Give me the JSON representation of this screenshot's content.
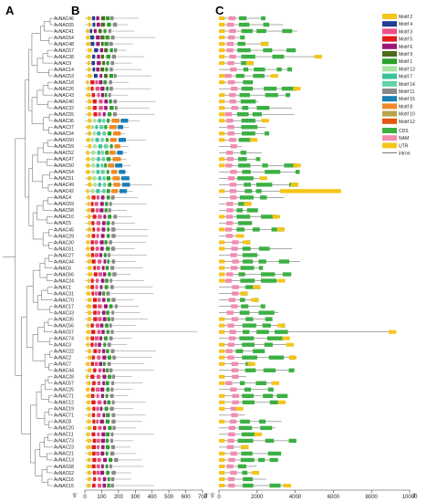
{
  "panels": {
    "a": "A",
    "b": "B",
    "c": "C"
  },
  "genes": [
    "AvNAC46",
    "AvNAC65",
    "AvNAC41",
    "AvNAC64",
    "AvNAC48",
    "AvNAC67",
    "AvNAC38",
    "AvNAC9",
    "AvNAC14",
    "AvNAC53",
    "AvNAC18",
    "AvNAC26",
    "AvNAC43",
    "AvNAC40",
    "AvNAC32",
    "AvNAC55",
    "AvNAC36",
    "AvNAC37",
    "AvNAC34",
    "AvNAC60",
    "AvNAC59",
    "AvNAC52",
    "AvNAC47",
    "AvNAC50",
    "AvNAC54",
    "AvNAC51",
    "AvNAC49",
    "AvNAC42",
    "AvNAC4",
    "AvNAC69",
    "AvNAC58",
    "AvNAC10",
    "AvNAC5",
    "AvNAC45",
    "AvNAC29",
    "AvNAC30",
    "AvNAC61",
    "AvNAC27",
    "AvNAC44",
    "AvNAC6",
    "AvNAC66",
    "AvNAC24",
    "AvNAC1",
    "AvNAC31",
    "AvNAC70",
    "AvNAC17",
    "AvNAC33",
    "AvNAC35",
    "AvNAC56",
    "AvNAC57",
    "AvNAC74",
    "AvNAC3",
    "AvNAC22",
    "AvNAC2",
    "AvNAC7",
    "AvNAC44",
    "AvNAC28",
    "AvNAC57",
    "AvNAC25",
    "AvNAC71",
    "AvNAC12",
    "AvNAC19",
    "AvNAC71",
    "AvNAC8",
    "AvNAC20",
    "AvNAC11",
    "AvNAC73",
    "AvNAC23",
    "AvNAC21",
    "AvNAC13",
    "AvNAC68",
    "AvNAC62",
    "AvNAC16",
    "AvNAC15"
  ],
  "motif_axis": {
    "ticks": [
      "0",
      "100",
      "200",
      "300",
      "400",
      "500",
      "600",
      "700"
    ],
    "five_prime": "5'",
    "three_prime": "3'"
  },
  "gene_axis": {
    "ticks": [
      "0",
      "2000",
      "4000",
      "6000",
      "8000",
      "10000"
    ],
    "five_prime": "5'",
    "three_prime": "3'"
  },
  "motif_legend": [
    {
      "label": "Motif 2",
      "color": "#f5c518"
    },
    {
      "label": "Motif 4",
      "color": "#1f3f8f"
    },
    {
      "label": "Motif 3",
      "color": "#e8508a"
    },
    {
      "label": "Motif 5",
      "color": "#e31a1c"
    },
    {
      "label": "Motif 6",
      "color": "#a0157a"
    },
    {
      "label": "Motif 9",
      "color": "#4d6b1a"
    },
    {
      "label": "Motif 1",
      "color": "#2ca02c"
    },
    {
      "label": "Motif 13",
      "color": "#a6e3a1"
    },
    {
      "label": "Motif 7",
      "color": "#3bc29a"
    },
    {
      "label": "Motif 14",
      "color": "#5fd3a3"
    },
    {
      "label": "Motif 11",
      "color": "#8a8a8a"
    },
    {
      "label": "Motif 15",
      "color": "#1a7fb5"
    },
    {
      "label": "Motif 8",
      "color": "#f08a24"
    },
    {
      "label": "Motif 10",
      "color": "#b7a34b"
    },
    {
      "label": "Motif 12",
      "color": "#e6550d"
    }
  ],
  "structure_legend": [
    {
      "label": "CDS",
      "color": "#3cb043",
      "kind": "box"
    },
    {
      "label": "NAM",
      "color": "#f28cb1",
      "kind": "box"
    },
    {
      "label": "UTR",
      "color": "#f5c518",
      "kind": "box"
    },
    {
      "label": "intron",
      "color": "#555555",
      "kind": "line"
    }
  ]
}
